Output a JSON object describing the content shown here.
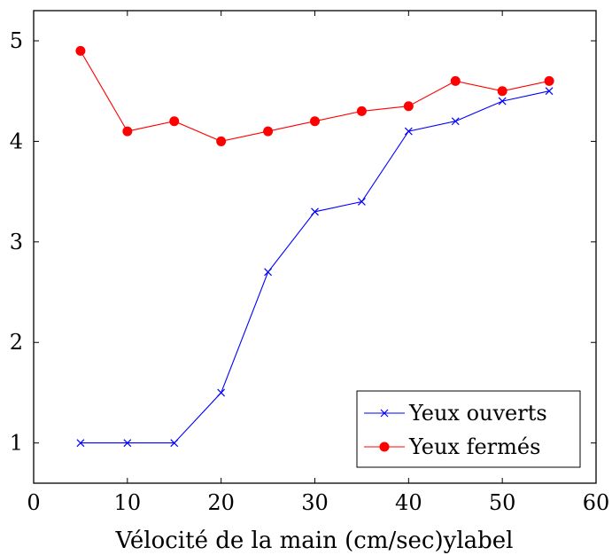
{
  "chart_data": {
    "type": "line",
    "xlabel": "Vélocité de la main (cm/sec)ylabel",
    "ylabel": "",
    "xlim": [
      0,
      60
    ],
    "ylim": [
      0.6,
      5.3
    ],
    "xticks": [
      0,
      10,
      20,
      30,
      40,
      50,
      60
    ],
    "yticks": [
      1,
      2,
      3,
      4,
      5
    ],
    "grid": false,
    "legend_position": "bottom-right",
    "x": [
      5,
      10,
      15,
      20,
      25,
      30,
      35,
      40,
      45,
      50,
      55
    ],
    "series": [
      {
        "name": "Yeux ouverts",
        "color": "#0000ff",
        "marker": "x",
        "values": [
          1.0,
          1.0,
          1.0,
          1.5,
          2.7,
          3.3,
          3.4,
          4.1,
          4.2,
          4.4,
          4.5
        ]
      },
      {
        "name": "Yeux fermés",
        "color": "#ff0000",
        "marker": "circle",
        "values": [
          4.9,
          4.1,
          4.2,
          4.0,
          4.1,
          4.2,
          4.3,
          4.35,
          4.6,
          4.5,
          4.6
        ]
      }
    ]
  }
}
